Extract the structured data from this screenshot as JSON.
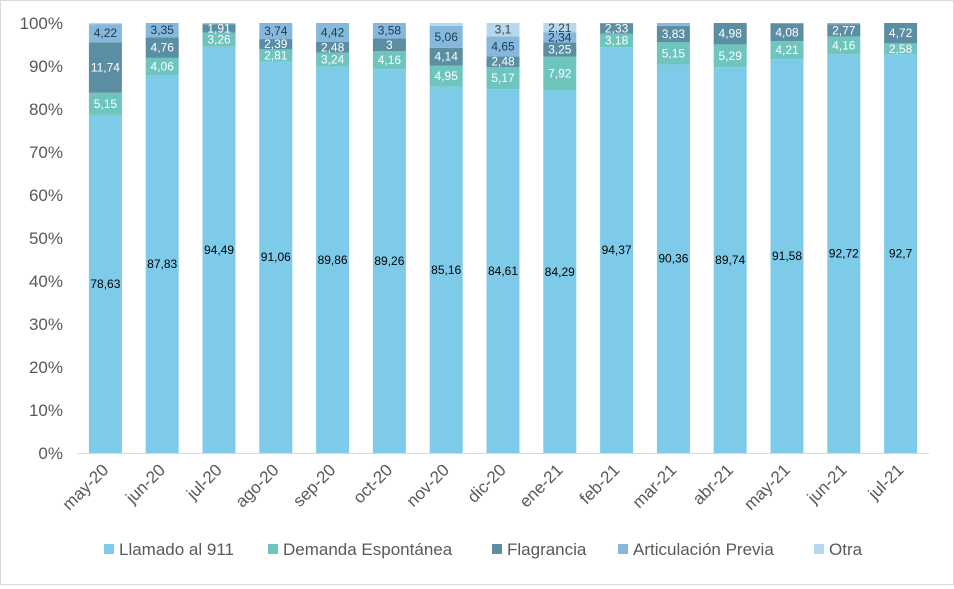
{
  "chart_data": {
    "type": "bar",
    "stacked": true,
    "percent_stacked": true,
    "categories": [
      "may-20",
      "jun-20",
      "jul-20",
      "ago-20",
      "sep-20",
      "oct-20",
      "nov-20",
      "dic-20",
      "ene-21",
      "feb-21",
      "mar-21",
      "abr-21",
      "may-21",
      "jun-21",
      "jul-21"
    ],
    "series": [
      {
        "name": "Llamado al 911",
        "color": "#7ecbe9",
        "values": [
          78.63,
          87.83,
          94.49,
          91.06,
          89.86,
          89.26,
          85.16,
          84.61,
          84.29,
          94.37,
          90.36,
          89.74,
          91.58,
          92.72,
          92.7
        ],
        "labels": [
          "78,63",
          "87,83",
          "94,49",
          "91,06",
          "89,86",
          "89,26",
          "85,16",
          "84,61",
          "84,29",
          "94,37",
          "90,36",
          "89,74",
          "91,58",
          "92,72",
          "92,7"
        ]
      },
      {
        "name": "Demanda Espontánea",
        "color": "#6ec5bd",
        "values": [
          5.15,
          4.06,
          3.26,
          2.81,
          3.24,
          4.16,
          4.95,
          5.17,
          7.92,
          3.18,
          5.15,
          5.29,
          4.21,
          4.16,
          2.58
        ],
        "labels": [
          "5,15",
          "4,06",
          "3,26",
          "2,81",
          "3,24",
          "4,16",
          "4,95",
          "5,17",
          "7,92",
          "3,18",
          "5,15",
          "5,29",
          "4,21",
          "4,16",
          "2,58"
        ]
      },
      {
        "name": "Flagrancia",
        "color": "#5b8da3",
        "values": [
          11.74,
          4.76,
          1.91,
          2.39,
          2.48,
          3.0,
          4.14,
          2.48,
          3.25,
          2.33,
          3.83,
          4.98,
          4.08,
          2.77,
          4.72
        ],
        "labels": [
          "11,74",
          "4,76",
          "1,91",
          "2,39",
          "2,48",
          "3",
          "4,14",
          "2,48",
          "3,25",
          "2,33",
          "3,83",
          "4,98",
          "4,08",
          "2,77",
          "4,72"
        ]
      },
      {
        "name": "Articulación Previa",
        "color": "#86b8de",
        "values": [
          4.22,
          3.35,
          0.3,
          3.74,
          4.42,
          3.58,
          5.06,
          4.65,
          2.34,
          0.12,
          0.66,
          0.0,
          0.13,
          0.35,
          0.0
        ],
        "labels": [
          "4,22",
          "3,35",
          "",
          "3,74",
          "4,42",
          "3,58",
          "5,06",
          "4,65",
          "2,34",
          "",
          "",
          "",
          "",
          "",
          ""
        ]
      },
      {
        "name": "Otra",
        "color": "#b6d8ef",
        "values": [
          0.26,
          0.0,
          0.04,
          0.0,
          0.0,
          0.0,
          0.69,
          3.1,
          2.21,
          0.0,
          0.0,
          0.0,
          0.0,
          0.0,
          0.0
        ],
        "labels": [
          "",
          "",
          "",
          "",
          "",
          "",
          "",
          "3,1",
          "2,21",
          "",
          "",
          "",
          "",
          "",
          ""
        ]
      }
    ],
    "y_ticks": [
      "0%",
      "10%",
      "20%",
      "30%",
      "40%",
      "50%",
      "60%",
      "70%",
      "80%",
      "90%",
      "100%"
    ],
    "ylim": [
      0,
      100
    ],
    "grid": false,
    "legend_position": "bottom",
    "title": "",
    "xlabel": "",
    "ylabel": ""
  }
}
